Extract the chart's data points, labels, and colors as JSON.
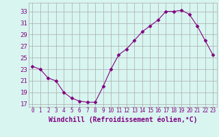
{
  "hours": [
    0,
    1,
    2,
    3,
    4,
    5,
    6,
    7,
    8,
    9,
    10,
    11,
    12,
    13,
    14,
    15,
    16,
    17,
    18,
    19,
    20,
    21,
    22,
    23
  ],
  "windchill": [
    23.5,
    23.0,
    21.5,
    21.0,
    19.0,
    18.0,
    17.5,
    17.3,
    17.3,
    20.0,
    23.0,
    25.5,
    26.5,
    28.0,
    29.5,
    30.5,
    31.5,
    33.0,
    33.0,
    33.2,
    32.5,
    30.5,
    28.0,
    25.5
  ],
  "line_color": "#800080",
  "marker": "D",
  "marker_size": 2.5,
  "bg_color": "#d8f5f0",
  "grid_color": "#aaaaaa",
  "xlabel": "Windchill (Refroidissement éolien,°C)",
  "xlabel_fontsize": 7,
  "yticks": [
    17,
    19,
    21,
    23,
    25,
    27,
    29,
    31,
    33
  ],
  "xticks": [
    0,
    1,
    2,
    3,
    4,
    5,
    6,
    7,
    8,
    9,
    10,
    11,
    12,
    13,
    14,
    15,
    16,
    17,
    18,
    19,
    20,
    21,
    22,
    23
  ],
  "ylim": [
    16.5,
    34.5
  ],
  "xlim": [
    -0.5,
    23.5
  ],
  "ytick_fontsize": 6.5,
  "xtick_fontsize": 5.5
}
